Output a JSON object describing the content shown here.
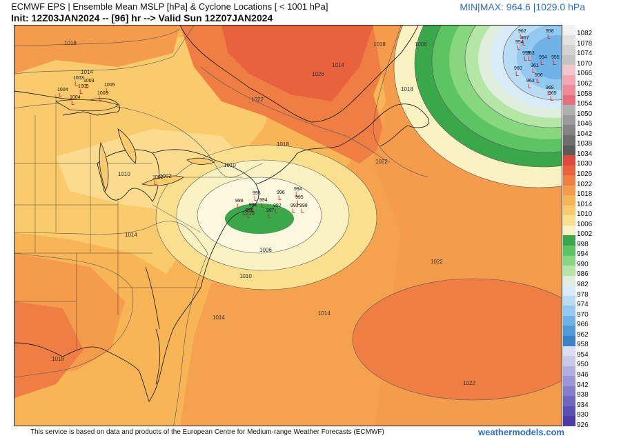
{
  "header": {
    "title": "ECMWF EPS | Ensemble Mean MSLP [hPa] & Cyclone Locations [ < 1001 hPa]",
    "init": "Init: 12Z03JAN2024 -- [96] hr --> Valid Sun 12Z07JAN2024",
    "minmax": "MIN|MAX: 964.6 |1029.0 hPa"
  },
  "footer": {
    "credit": "This service is based on data and products of the European Centre for Medium-range Weather Forecasts (ECMWF)",
    "brand": "weathermodels.com"
  },
  "colorbar": {
    "labels": [
      "1082",
      "1078",
      "1074",
      "1070",
      "1066",
      "1062",
      "1058",
      "1054",
      "1050",
      "1046",
      "1042",
      "1038",
      "1034",
      "1030",
      "1026",
      "1022",
      "1018",
      "1014",
      "1010",
      "1006",
      "1002",
      "998",
      "994",
      "990",
      "986",
      "982",
      "978",
      "974",
      "970",
      "966",
      "962",
      "958",
      "954",
      "950",
      "946",
      "942",
      "938",
      "934",
      "930",
      "926"
    ],
    "colors": [
      "#f2f2f2",
      "#e2e2e2",
      "#d2d2d2",
      "#c4c4c4",
      "#f4c6cc",
      "#f0a9b2",
      "#ec8c98",
      "#e8707e",
      "#b0b0b0",
      "#9a9a9a",
      "#848484",
      "#6e6e6e",
      "#5a5a5a",
      "#e0483a",
      "#e8623e",
      "#ef7e44",
      "#f49c4c",
      "#f7b456",
      "#f9cb6c",
      "#fae08e",
      "#fbf2c4",
      "#3aa84a",
      "#5cc462",
      "#86d77e",
      "#b4e6a6",
      "#dfeedd",
      "#d9ebf7",
      "#b8dcf4",
      "#93c8ef",
      "#6fb2e8",
      "#4f9ad9",
      "#3a82c8",
      "#dcdcf0",
      "#c8c8ea",
      "#b0aee2",
      "#9a96d8",
      "#847ecc",
      "#6f66c0",
      "#5c4fb2",
      "#4d3aa4"
    ]
  },
  "map": {
    "isobar_labels": [
      "1018",
      "1014",
      "1010",
      "1002",
      "1014",
      "1010",
      "1006",
      "1010",
      "1014",
      "1018",
      "1022",
      "1026",
      "1018",
      "1022",
      "1022",
      "1022",
      "1018",
      "1014",
      "1006",
      "1010",
      "1014",
      "1018"
    ],
    "low_center_labels": [
      "1003",
      "1004",
      "1005",
      "1003",
      "1004",
      "1005",
      "1003",
      "1002",
      "996",
      "994",
      "995",
      "993",
      "998",
      "991",
      "992",
      "993",
      "994",
      "997",
      "995",
      "998",
      "964",
      "961",
      "962",
      "955",
      "954",
      "957",
      "958",
      "963",
      "968",
      "965",
      "960",
      "956",
      "953",
      "959"
    ]
  }
}
